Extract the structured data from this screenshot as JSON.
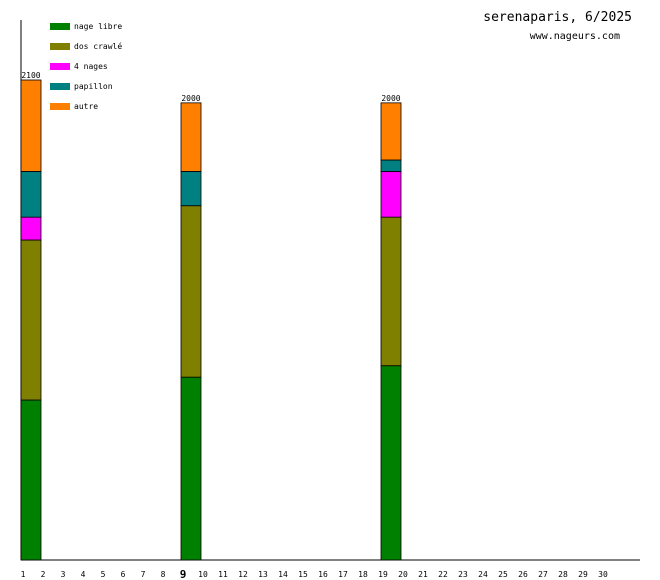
{
  "chart_data": {
    "type": "bar",
    "stacked": true,
    "title": "serenaparis, 6/2025",
    "subtitle": "www.nageurs.com",
    "x": [
      1,
      2,
      3,
      4,
      5,
      6,
      7,
      8,
      9,
      10,
      11,
      12,
      13,
      14,
      15,
      16,
      17,
      18,
      19,
      20,
      21,
      22,
      23,
      24,
      25,
      26,
      27,
      28,
      29,
      30
    ],
    "highlight_x": 9,
    "ylim": [
      0,
      2100
    ],
    "series": [
      {
        "name": "nage libre",
        "color": "#008000",
        "values": {
          "1": 700,
          "9": 800,
          "19": 850
        }
      },
      {
        "name": "dos crawlé",
        "color": "#808000",
        "values": {
          "1": 700,
          "9": 750,
          "19": 650
        }
      },
      {
        "name": "4 nages",
        "color": "#ff00ff",
        "values": {
          "1": 100,
          "9": 0,
          "19": 200
        }
      },
      {
        "name": "papillon",
        "color": "#008080",
        "values": {
          "1": 200,
          "9": 150,
          "19": 50
        }
      },
      {
        "name": "autre",
        "color": "#ff8000",
        "values": {
          "1": 400,
          "9": 300,
          "19": 250
        }
      }
    ],
    "totals": {
      "1": "2100",
      "9": "2000",
      "19": "2000"
    },
    "legend_position": "top-left"
  }
}
